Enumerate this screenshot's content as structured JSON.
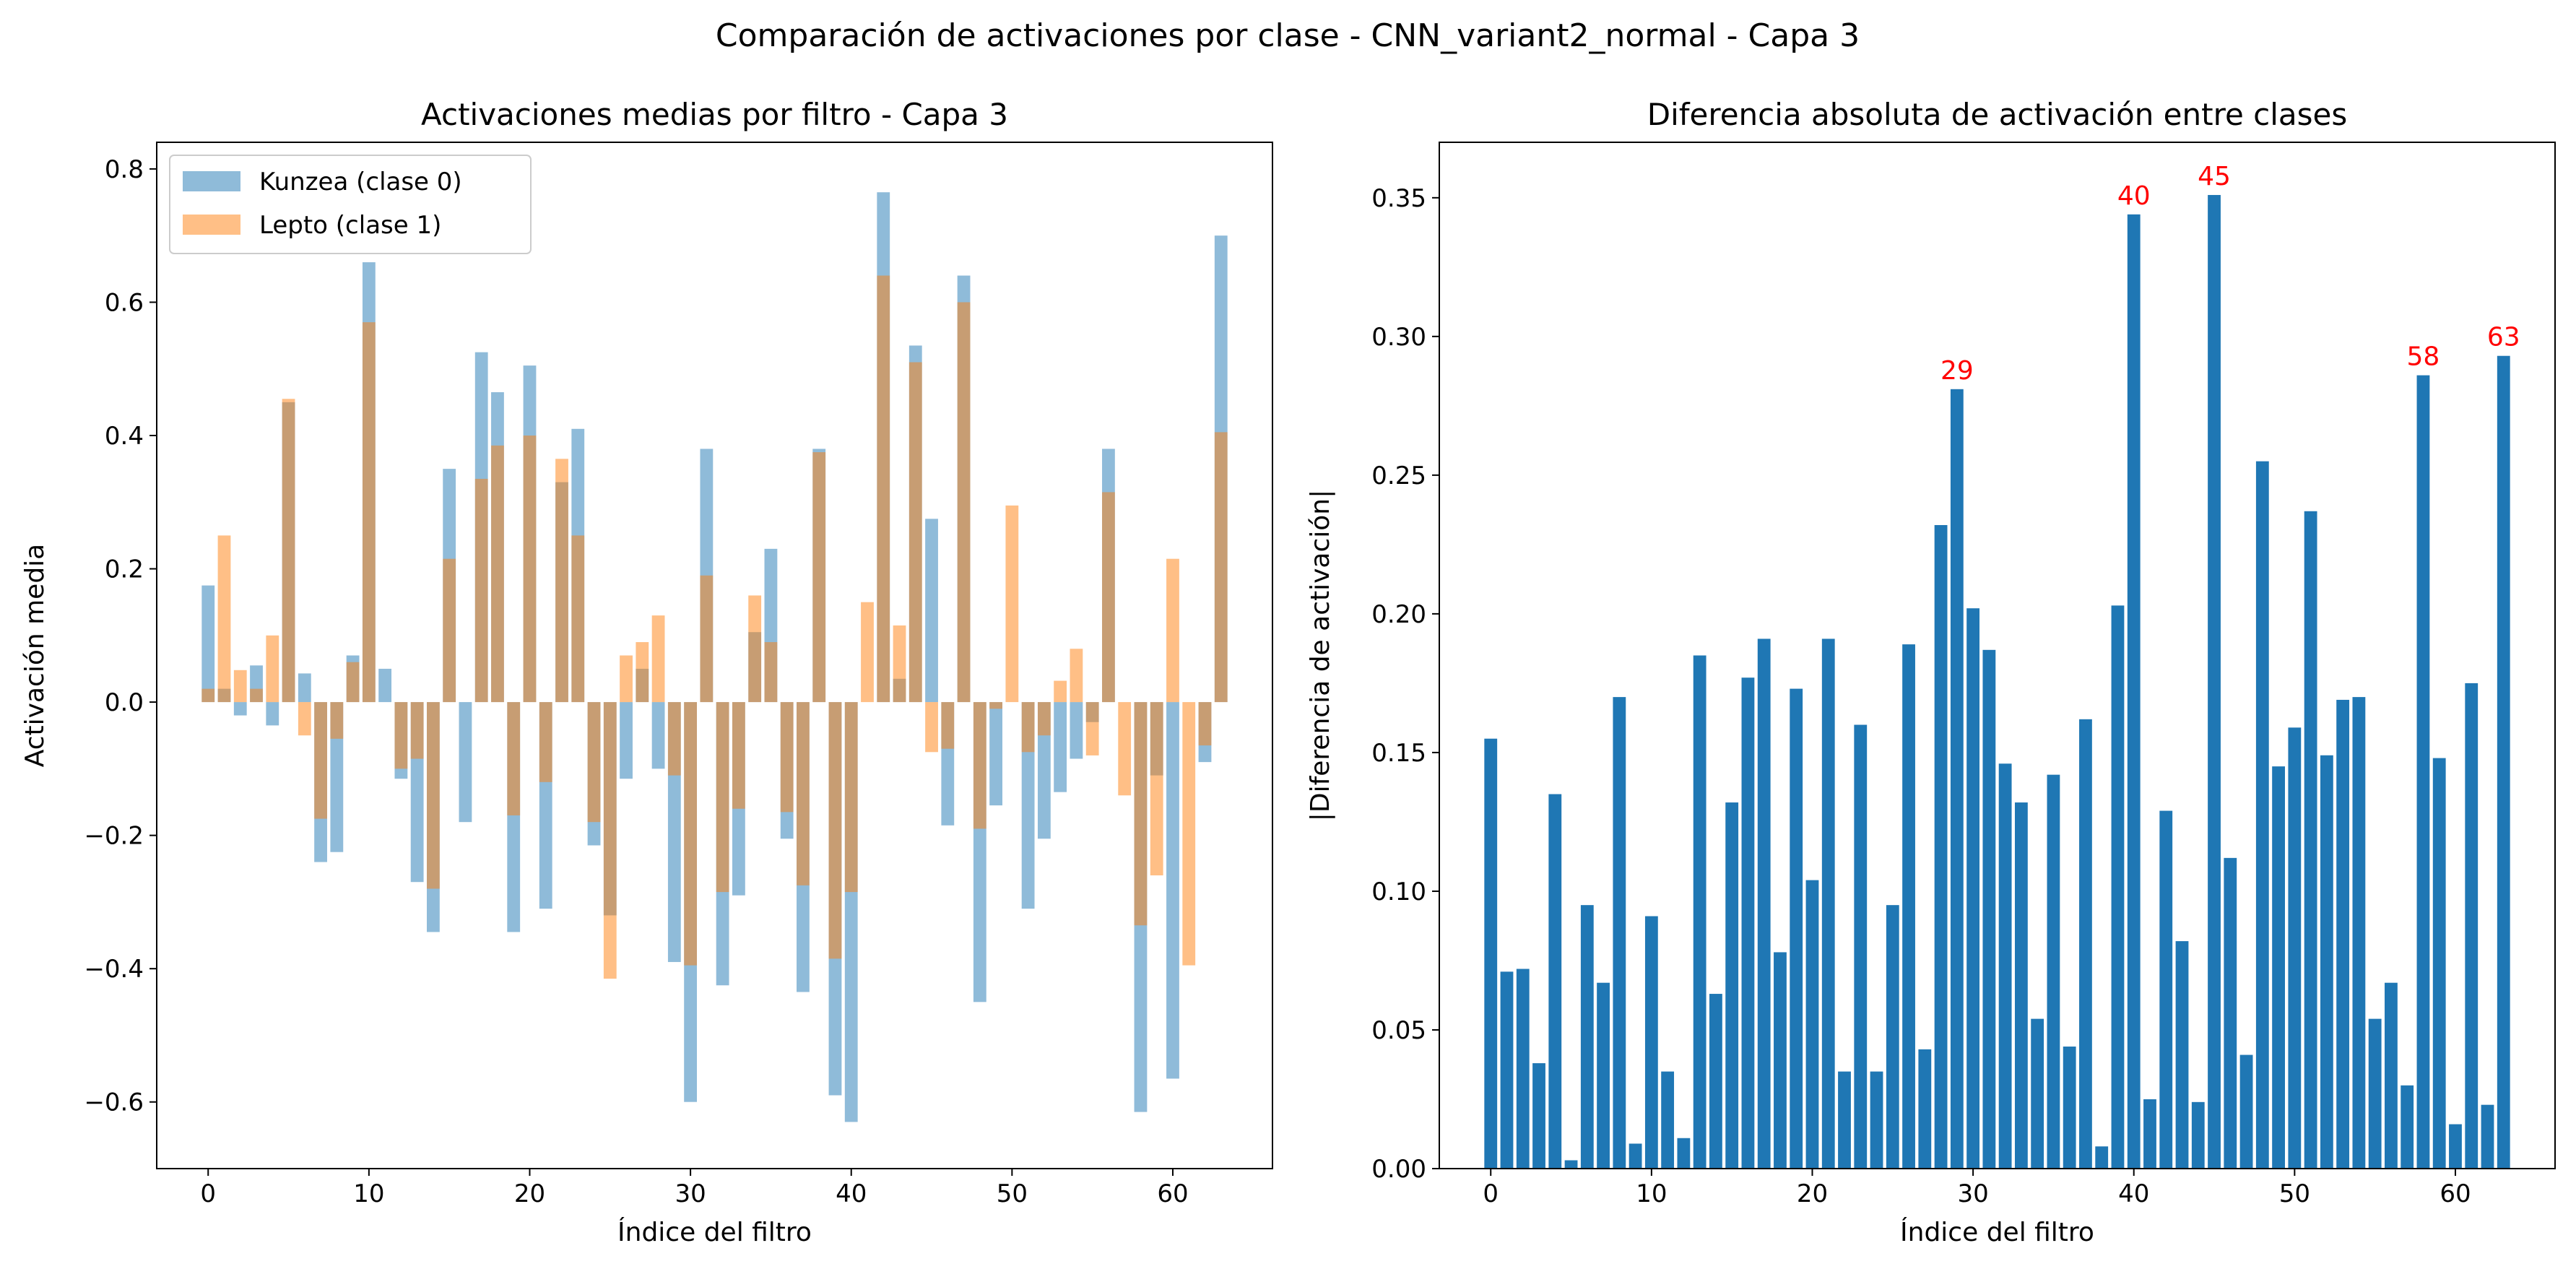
{
  "suptitle": "Comparación de activaciones por clase - CNN_variant2_normal - Capa 3",
  "chart_data": [
    {
      "type": "bar",
      "title": "Activaciones medias por filtro - Capa 3",
      "xlabel": "Índice del filtro",
      "ylabel": "Activación media",
      "xlim": [
        -3.2,
        66.2
      ],
      "ylim": [
        -0.7,
        0.84
      ],
      "xticks": [
        0,
        10,
        20,
        30,
        40,
        50,
        60
      ],
      "yticks": [
        -0.6,
        -0.4,
        -0.2,
        0.0,
        0.2,
        0.4,
        0.6,
        0.8
      ],
      "ytick_labels": [
        "−0.6",
        "−0.4",
        "−0.2",
        "0.0",
        "0.2",
        "0.4",
        "0.6",
        "0.8"
      ],
      "legend_position": "upper left",
      "series": [
        {
          "name": "Kunzea (clase 0)",
          "color": "#1f77b4",
          "opacity": 0.5,
          "values": [
            0.175,
            0.02,
            -0.02,
            0.055,
            -0.035,
            0.45,
            0.043,
            -0.24,
            -0.225,
            0.07,
            0.66,
            0.05,
            -0.115,
            -0.27,
            -0.345,
            0.35,
            -0.18,
            0.525,
            0.465,
            -0.345,
            0.505,
            -0.31,
            0.33,
            0.41,
            -0.215,
            -0.32,
            -0.115,
            0.05,
            -0.1,
            -0.39,
            -0.6,
            0.38,
            -0.425,
            -0.29,
            0.105,
            0.23,
            -0.205,
            -0.435,
            0.38,
            -0.59,
            -0.63,
            0.0,
            0.765,
            0.035,
            0.535,
            0.275,
            -0.185,
            0.64,
            -0.45,
            -0.155,
            0.0,
            -0.31,
            -0.205,
            -0.135,
            -0.085,
            -0.03,
            0.38,
            0.0,
            -0.615,
            -0.11,
            -0.565,
            0.0,
            -0.09,
            0.7
          ]
        },
        {
          "name": "Lepto (clase 1)",
          "color": "#ff7f0e",
          "opacity": 0.5,
          "values": [
            0.02,
            0.25,
            0.048,
            0.02,
            0.1,
            0.455,
            -0.05,
            -0.175,
            -0.055,
            0.06,
            0.57,
            0.0,
            -0.1,
            -0.085,
            -0.28,
            0.215,
            0.0,
            0.335,
            0.385,
            -0.17,
            0.4,
            -0.12,
            0.365,
            0.25,
            -0.18,
            -0.415,
            0.07,
            0.09,
            0.13,
            -0.11,
            -0.395,
            0.19,
            -0.285,
            -0.16,
            0.16,
            0.09,
            -0.165,
            -0.275,
            0.375,
            -0.385,
            -0.285,
            0.15,
            0.64,
            0.115,
            0.51,
            -0.075,
            -0.07,
            0.6,
            -0.19,
            -0.01,
            0.295,
            -0.075,
            -0.05,
            0.032,
            0.08,
            -0.08,
            0.315,
            -0.14,
            -0.335,
            -0.26,
            0.215,
            -0.395,
            -0.065,
            0.405
          ]
        }
      ]
    },
    {
      "type": "bar",
      "title": "Diferencia absoluta de activación entre clases",
      "xlabel": "Índice del filtro",
      "ylabel": "|Diferencia de activación|",
      "xlim": [
        -3.2,
        66.2
      ],
      "ylim": [
        0,
        0.37
      ],
      "xticks": [
        0,
        10,
        20,
        30,
        40,
        50,
        60
      ],
      "yticks": [
        0.0,
        0.05,
        0.1,
        0.15,
        0.2,
        0.25,
        0.3,
        0.35
      ],
      "ytick_labels": [
        "0.00",
        "0.05",
        "0.10",
        "0.15",
        "0.20",
        "0.25",
        "0.30",
        "0.35"
      ],
      "color": "#1f77b4",
      "annotation_color": "#ff0000",
      "annotated": [
        29,
        40,
        45,
        58,
        63
      ],
      "values": [
        0.155,
        0.071,
        0.072,
        0.038,
        0.135,
        0.003,
        0.095,
        0.067,
        0.17,
        0.009,
        0.091,
        0.035,
        0.011,
        0.185,
        0.063,
        0.132,
        0.177,
        0.191,
        0.078,
        0.173,
        0.104,
        0.191,
        0.035,
        0.16,
        0.035,
        0.095,
        0.189,
        0.043,
        0.232,
        0.281,
        0.202,
        0.187,
        0.146,
        0.132,
        0.054,
        0.142,
        0.044,
        0.162,
        0.008,
        0.203,
        0.344,
        0.025,
        0.129,
        0.082,
        0.024,
        0.351,
        0.112,
        0.041,
        0.255,
        0.145,
        0.159,
        0.237,
        0.149,
        0.169,
        0.17,
        0.054,
        0.067,
        0.03,
        0.286,
        0.148,
        0.016,
        0.175,
        0.023,
        0.293
      ]
    }
  ]
}
